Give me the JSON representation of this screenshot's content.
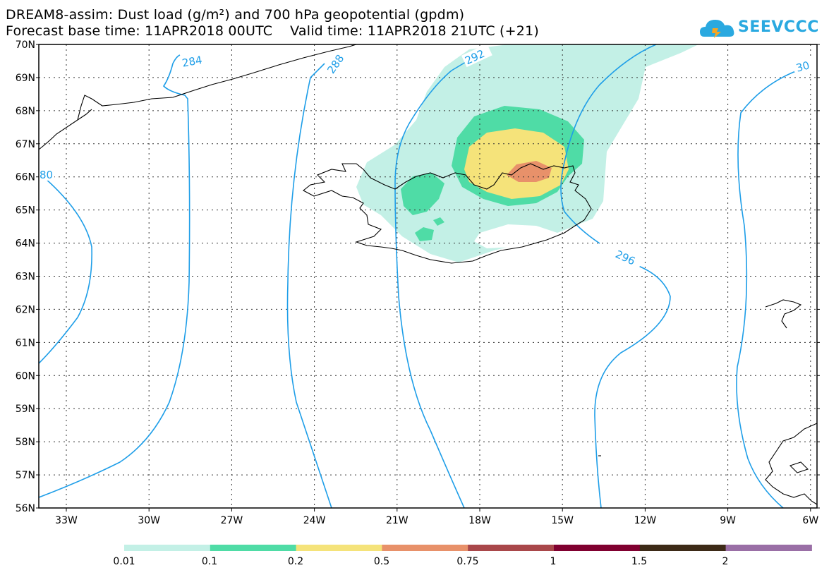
{
  "title": {
    "line1": "DREAM8-assim: Dust load (g/m²) and 700 hPa geopotential (gpdm)",
    "line2": "Forecast base time: 11APR2018 00UTC    Valid time: 11APR2018 21UTC (+21)"
  },
  "logo": {
    "text": "SEEVCCC",
    "icon": "cloud-icon",
    "color": "#2aa9e0"
  },
  "map": {
    "lat_ticks": [
      "56N",
      "57N",
      "58N",
      "59N",
      "60N",
      "61N",
      "62N",
      "63N",
      "64N",
      "65N",
      "66N",
      "67N",
      "68N",
      "69N",
      "70N"
    ],
    "lon_ticks": [
      "33W",
      "30W",
      "27W",
      "24W",
      "21W",
      "18W",
      "15W",
      "12W",
      "9W",
      "6W"
    ],
    "contour_labels": [
      "284",
      "288",
      "292",
      "296",
      "80",
      "30"
    ],
    "contour_color": "#1e9ee8",
    "grid": "dotted"
  },
  "colorbar": {
    "labels": [
      "0.01",
      "0.1",
      "0.2",
      "0.5",
      "0.75",
      "1",
      "1.5",
      "2"
    ],
    "colors": [
      "#c3f0e6",
      "#4fdca6",
      "#f5e37a",
      "#e8916a",
      "#a9474a",
      "#800030",
      "#3d2a17",
      "#9a6fa6"
    ]
  }
}
